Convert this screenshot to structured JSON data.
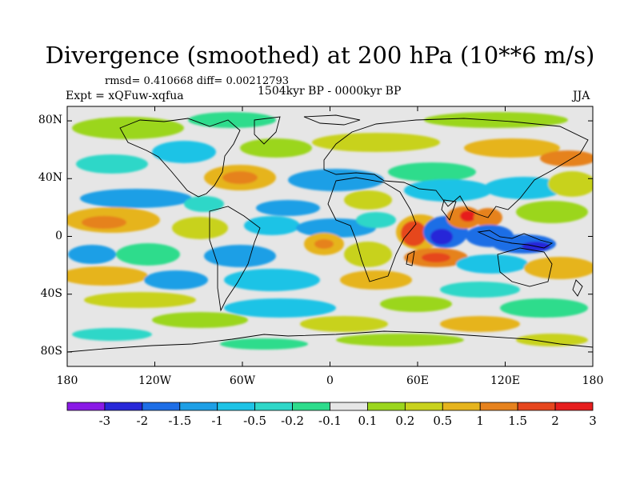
{
  "title": "Divergence (smoothed) at 200 hPa (10**6 m/s)",
  "rmsd_line": "rmsd= 0.410668 diff= 0.00212793",
  "expt_label": "Expt = xQFuw-xqfua",
  "period_label": "1504kyr BP - 0000kyr BP",
  "season_label": "JJA",
  "axes": {
    "lat_labels": [
      "80N",
      "40N",
      "0",
      "40S",
      "80S"
    ],
    "lat_values": [
      80,
      40,
      0,
      -40,
      -80
    ],
    "lon_labels": [
      "180",
      "120W",
      "60W",
      "0",
      "60E",
      "120E",
      "180"
    ],
    "lon_values": [
      -180,
      -120,
      -60,
      0,
      60,
      120,
      180
    ]
  },
  "colorbar": {
    "labels": [
      "-3",
      "-2",
      "-1.5",
      "-1",
      "-0.5",
      "-0.2",
      "-0.1",
      "0.1",
      "0.2",
      "0.5",
      "1",
      "1.5",
      "2",
      "3"
    ],
    "colors": [
      "#8a1ae6",
      "#2828d8",
      "#1e6ee6",
      "#1e9fe6",
      "#1ec3e6",
      "#2fd7c8",
      "#2ddc8c",
      "#e6e6e6",
      "#9bd61e",
      "#c8d21e",
      "#e6b41e",
      "#e6821e",
      "#e6461e",
      "#e61e1e"
    ]
  },
  "map_colors": {
    "background": "#e6e6e6",
    "neutral": "#e6e6e6",
    "coastline": "#000000"
  }
}
